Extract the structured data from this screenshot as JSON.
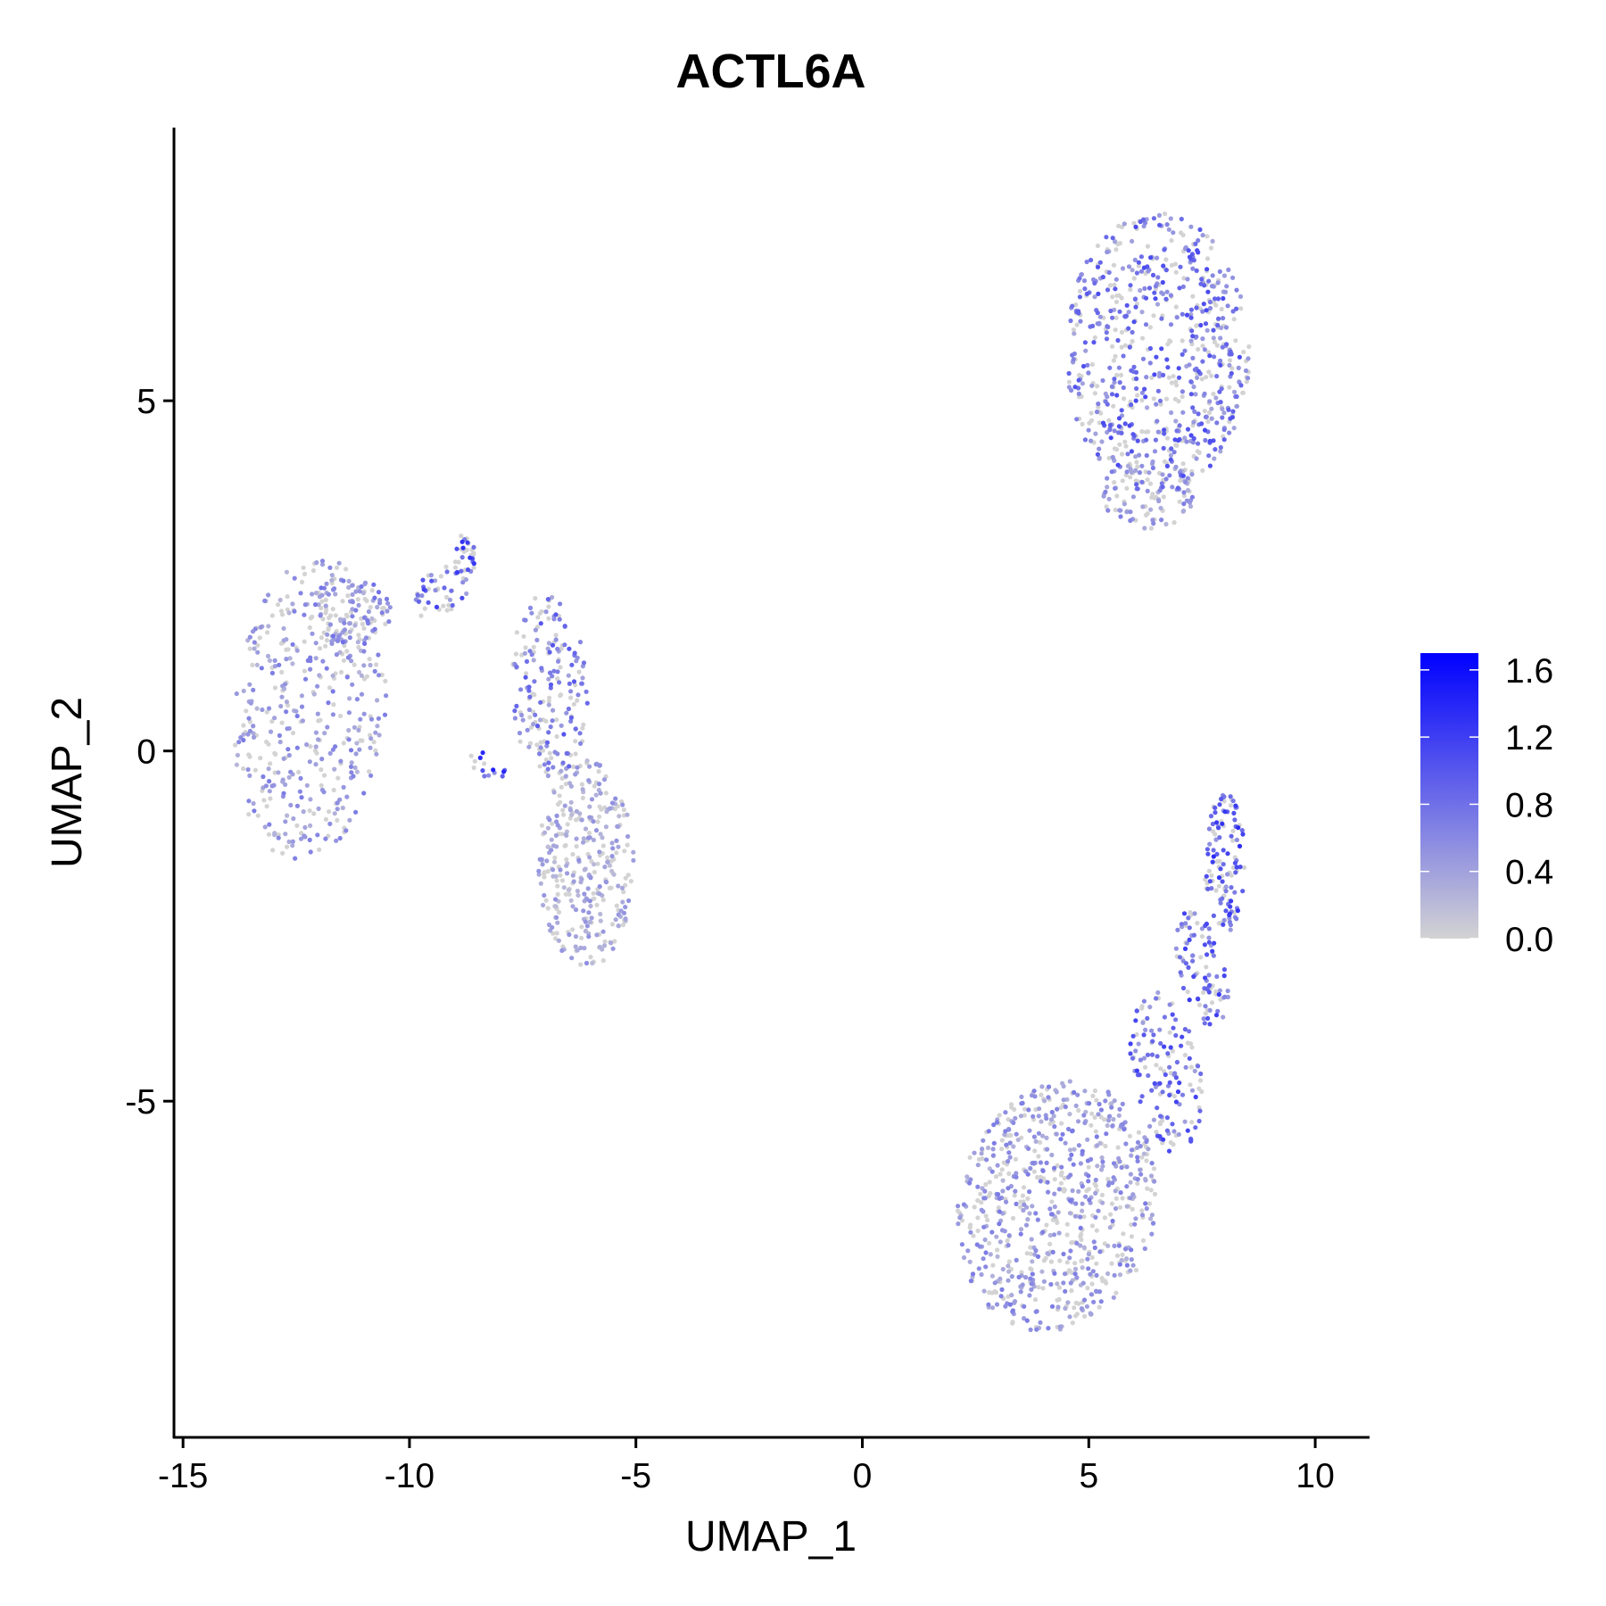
{
  "chart_data": {
    "type": "scatter",
    "title": "ACTL6A",
    "xlabel": "UMAP_1",
    "ylabel": "UMAP_2",
    "xlim": [
      -15.2,
      11.2
    ],
    "ylim": [
      -9.8,
      8.9
    ],
    "xticks": [
      -15,
      -10,
      -5,
      0,
      5,
      10
    ],
    "xtick_labels": [
      "-15",
      "-10",
      "-5",
      "0",
      "5",
      "10"
    ],
    "yticks": [
      -5,
      0,
      5
    ],
    "ytick_labels": [
      "-5",
      "0",
      "5"
    ],
    "grid": false,
    "legend": {
      "placement": "right",
      "kind": "colorbar",
      "range": [
        0,
        1.7
      ],
      "ticks": [
        0.0,
        0.4,
        0.8,
        1.2,
        1.6
      ],
      "tick_labels": [
        "0.0",
        "0.4",
        "0.8",
        "1.2",
        "1.6"
      ],
      "low_color": "#d3d3d3",
      "high_color": "#0000ff"
    },
    "clusters": [
      {
        "shape": "blob",
        "cx": -12.2,
        "cy": 0.6,
        "rx": 1.65,
        "ry": 2.2,
        "tilt": -0.25,
        "n": 420,
        "mean_expr": 0.45
      },
      {
        "shape": "blob",
        "cx": -11.3,
        "cy": 2.0,
        "rx": 0.9,
        "ry": 0.5,
        "tilt": 0.0,
        "n": 90,
        "mean_expr": 0.5
      },
      {
        "shape": "blob",
        "cx": -9.3,
        "cy": 2.3,
        "rx": 0.7,
        "ry": 0.35,
        "tilt": 0.3,
        "n": 45,
        "mean_expr": 0.75
      },
      {
        "shape": "blob",
        "cx": -8.8,
        "cy": 2.75,
        "rx": 0.25,
        "ry": 0.35,
        "tilt": 0.0,
        "n": 30,
        "mean_expr": 0.85
      },
      {
        "shape": "blob",
        "cx": -8.3,
        "cy": -0.2,
        "rx": 0.45,
        "ry": 0.2,
        "tilt": -0.4,
        "n": 14,
        "mean_expr": 0.9
      },
      {
        "shape": "blob",
        "cx": -6.9,
        "cy": 0.9,
        "rx": 0.85,
        "ry": 1.35,
        "tilt": 0.1,
        "n": 190,
        "mean_expr": 0.65
      },
      {
        "shape": "blob",
        "cx": -6.1,
        "cy": -1.6,
        "rx": 1.05,
        "ry": 1.5,
        "tilt": 0.0,
        "n": 330,
        "mean_expr": 0.35
      },
      {
        "shape": "blob",
        "cx": 6.5,
        "cy": 5.7,
        "rx": 2.05,
        "ry": 2.0,
        "tilt": 0.0,
        "n": 680,
        "mean_expr": 0.7
      },
      {
        "shape": "blob",
        "cx": 6.3,
        "cy": 3.7,
        "rx": 1.05,
        "ry": 0.55,
        "tilt": 0.0,
        "n": 110,
        "mean_expr": 0.45
      },
      {
        "shape": "blob",
        "cx": 8.0,
        "cy": -1.6,
        "rx": 0.45,
        "ry": 1.0,
        "tilt": 0.0,
        "n": 120,
        "mean_expr": 0.85
      },
      {
        "shape": "blob",
        "cx": 7.5,
        "cy": -3.1,
        "rx": 0.5,
        "ry": 0.9,
        "tilt": 0.4,
        "n": 90,
        "mean_expr": 0.8
      },
      {
        "shape": "blob",
        "cx": 6.7,
        "cy": -4.6,
        "rx": 0.75,
        "ry": 1.2,
        "tilt": 0.35,
        "n": 140,
        "mean_expr": 0.75
      },
      {
        "shape": "blob",
        "cx": 4.3,
        "cy": -6.5,
        "rx": 2.25,
        "ry": 1.75,
        "tilt": 0.25,
        "n": 720,
        "mean_expr": 0.45
      }
    ]
  }
}
